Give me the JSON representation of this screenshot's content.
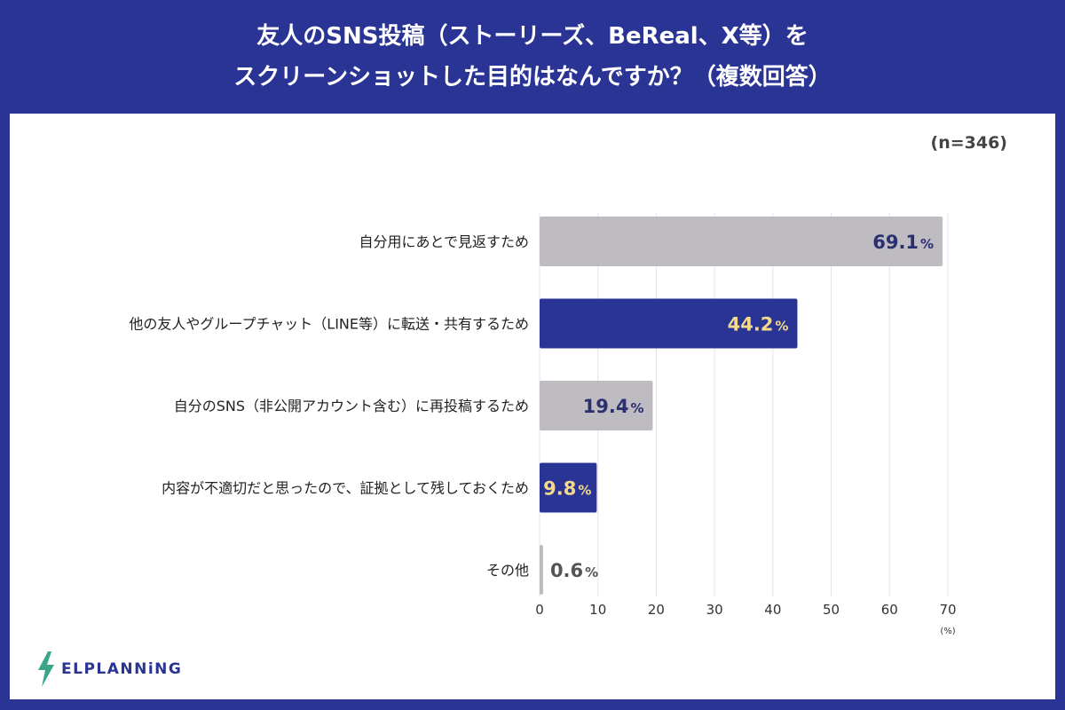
{
  "header": {
    "title_line1": "友人のSNS投稿（ストーリーズ、BeReal、X等）を",
    "title_line2": "スクリーンショットした目的はなんですか？（複数回答）"
  },
  "sample_size": "(n=346)",
  "logo": {
    "text": "ELPLANNiNG",
    "icon": "lightning-bolt-icon"
  },
  "colors": {
    "header_bg": "#2a3494",
    "bar_gray": "#bebcc1",
    "bar_navy": "#2a3494",
    "label_on_gray": "#2a2f72",
    "label_on_navy": "#f3d98c",
    "grid": "#e3dff0"
  },
  "chart_data": {
    "type": "bar",
    "orientation": "horizontal",
    "categories": [
      "自分用にあとで見返すため",
      "他の友人やグループチャット（LINE等）に転送・共有するため",
      "自分のSNS（非公開アカウント含む）に再投稿するため",
      "内容が不適切だと思ったので、証拠として残しておくため",
      "その他"
    ],
    "values": [
      69.1,
      44.2,
      19.4,
      9.8,
      0.6
    ],
    "value_labels": [
      "69.1",
      "44.2",
      "19.4",
      "9.8",
      "0.6"
    ],
    "value_unit": "%",
    "bar_colors": [
      "gray",
      "navy",
      "gray",
      "navy",
      "gray"
    ],
    "xlim": [
      0,
      70
    ],
    "xticks": [
      "0",
      "10",
      "20",
      "30",
      "40",
      "50",
      "60",
      "70"
    ],
    "xunit": "(%)",
    "grid": true
  }
}
